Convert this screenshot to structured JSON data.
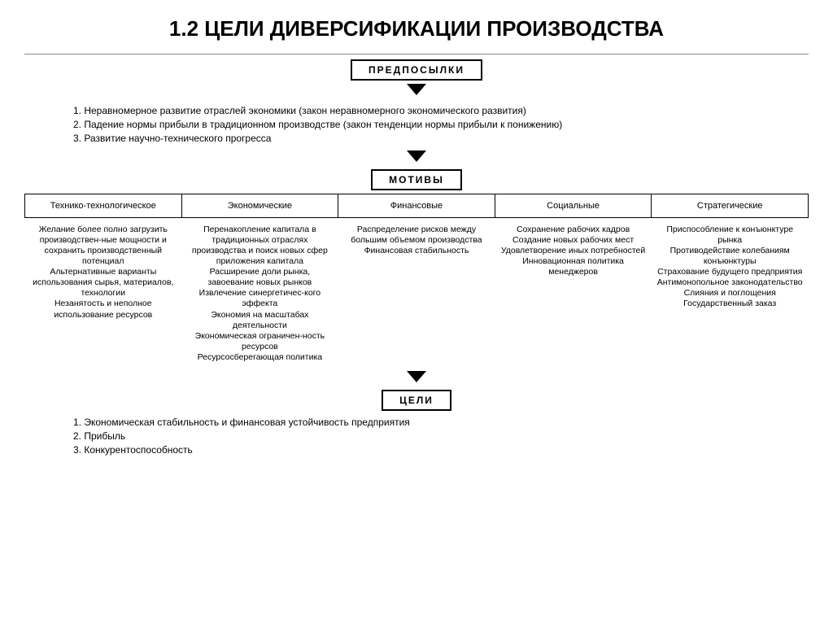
{
  "title": "1.2 ЦЕЛИ ДИВЕРСИФИКАЦИИ ПРОИЗВОДСТВА",
  "section1": {
    "label": "ПРЕДПОСЫЛКИ",
    "items": [
      "1. Неравномерное развитие отраслей экономики (закон неравномерного экономического развития)",
      "2. Падение нормы прибыли в традиционном производстве (закон тенденции нормы прибыли к понижению)",
      "3. Развитие научно-технического прогресса"
    ]
  },
  "section2": {
    "label": "МОТИВЫ",
    "columns": [
      {
        "header": "Технико-технологическое",
        "body": "Желание более полно загрузить производствен-ные мощности и сохранить производственный потенциал\nАльтернативные варианты использования сырья, материалов, технологии\nНезанятость и неполное использование ресурсов"
      },
      {
        "header": "Экономические",
        "body": "Перенакопление капитала в традиционных отраслях производства и поиск новых сфер приложения капитала\nРасширение доли рынка, завоевание новых рынков\nИзвлечение синергетичес-кого эффекта\nЭкономия на масштабах деятельности\nЭкономическая ограничен-ность ресурсов\nРесурсосберегающая политика"
      },
      {
        "header": "Финансовые",
        "body": "Распределение рисков между большим объемом производства\nФинансовая стабильность"
      },
      {
        "header": "Социальные",
        "body": "Сохранение рабочих кадров\nСоздание новых рабочих мест\nУдовлетворение иных потребностей\nИнновационная политика менеджеров"
      },
      {
        "header": "Стратегические",
        "body": "Приспособление к конъюнктуре рынка\nПротиводействие колебаниям конъюнктуры\nСтрахование будущего предприятия\nАнтимонопольное законодательство\nСлияния и поглощения\nГосударственный заказ"
      }
    ]
  },
  "section3": {
    "label": "ЦЕЛИ",
    "items": [
      "1. Экономическая стабильность и финансовая устойчивость предприятия",
      "2. Прибыль",
      "3. Конкурентоспособность"
    ]
  },
  "styling": {
    "background_color": "#ffffff",
    "text_color": "#000000",
    "border_color": "#000000",
    "title_fontsize": 26,
    "body_fontsize": 11,
    "arrow_color": "#000000"
  }
}
